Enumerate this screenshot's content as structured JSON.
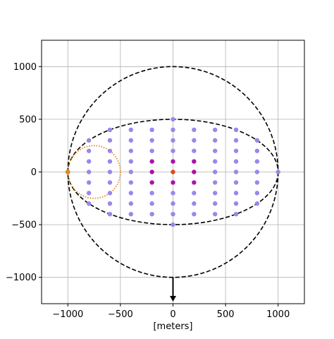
{
  "chart_data": {
    "type": "scatter",
    "title": "",
    "xlabel": "[meters]",
    "ylabel": "",
    "xlim": [
      -1250,
      1250
    ],
    "ylim": [
      -1250,
      1250
    ],
    "grid": true,
    "xticks": [
      -1000,
      -500,
      0,
      500,
      1000
    ],
    "yticks": [
      -1000,
      -500,
      0,
      500,
      1000
    ],
    "xtick_labels": [
      "−1000",
      "−500",
      "0",
      "500",
      "1000"
    ],
    "ytick_labels": [
      "−1000",
      "−500",
      "0",
      "500",
      "1000"
    ],
    "colors": {
      "grid_points": "#9b86ec",
      "inner_points": "#aa11aa",
      "center_point": "#d94f1f",
      "small_circle": "#d98a2a",
      "outline": "#000000"
    },
    "grid_points": {
      "x_values": [
        -800,
        -600,
        -400,
        -200,
        0,
        200,
        400,
        600,
        800
      ],
      "y_values": [
        -400,
        -300,
        -200,
        -100,
        0,
        100,
        200,
        300,
        400
      ],
      "extra_points": [
        [
          -1000,
          0
        ],
        [
          1000,
          0
        ],
        [
          0,
          500
        ],
        [
          0,
          -500
        ]
      ],
      "ellipse_semi_axes": [
        1000,
        500
      ]
    },
    "inner_points": [
      [
        -200,
        100
      ],
      [
        0,
        100
      ],
      [
        200,
        100
      ],
      [
        -200,
        0
      ],
      [
        200,
        0
      ],
      [
        -200,
        -100
      ],
      [
        0,
        -100
      ],
      [
        200,
        -100
      ]
    ],
    "center_point": [
      0,
      0
    ],
    "circle_large": {
      "center": [
        0,
        0
      ],
      "radius": 1000
    },
    "ellipse": {
      "center": [
        0,
        0
      ],
      "rx": 1000,
      "ry": 500
    },
    "circle_small": {
      "center": [
        -750,
        0
      ],
      "radius": 250
    },
    "small_circle_point": [
      -1000,
      0
    ],
    "arrow": {
      "from": [
        0,
        -1000
      ],
      "to": [
        0,
        -1230
      ]
    }
  }
}
